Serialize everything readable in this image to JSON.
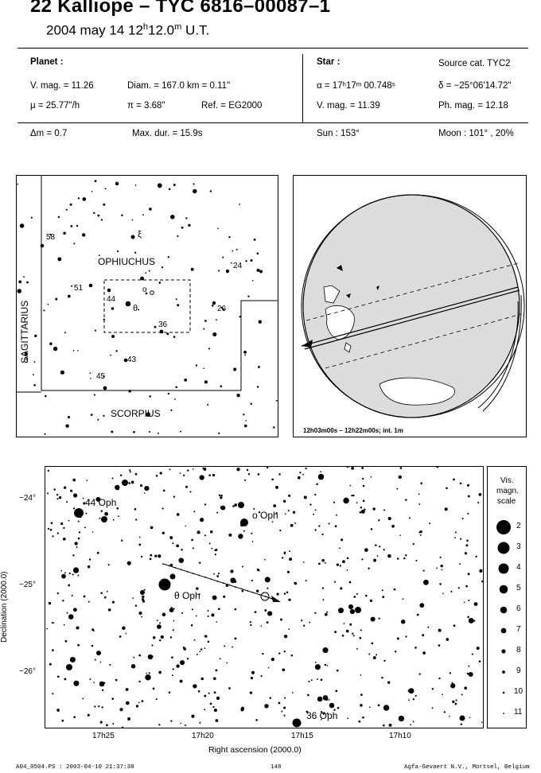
{
  "header": {
    "title": "22 Kalliope  –  TYC 6816–00087–1",
    "date": "2004 may 14  12",
    "time_h": "h",
    "time_min": "12.0",
    "time_m": "m",
    "time_ut": " U.T."
  },
  "planet": {
    "heading": "Planet :",
    "vmag": "V. mag. = 11.26",
    "diam": "Diam. = 167.0 km = 0.11\"",
    "mu": "μ =  25.77\"/h",
    "pi": "π =  3.68\"",
    "ref": "Ref. = EG2000"
  },
  "star": {
    "heading": "Star :",
    "source": "Source cat.  TYC2",
    "alpha": "α = 17ʰ17ᵐ 00.748ˢ",
    "delta": "δ = −25°06'14.72\"",
    "vmag": "V. mag. = 11.39",
    "phmag": "Ph. mag. = 12.18"
  },
  "summary": {
    "dm": "Δm = 0.7",
    "maxdur": "Max. dur. = 15.9s",
    "sun": "Sun : 153°",
    "moon": "Moon : 101° , 20%"
  },
  "constellation_map": {
    "ophiuchus": "OPHIUCHUS",
    "sagittarius": "SAGITTARIUS",
    "scorpius": "SCORPIUS",
    "stars": [
      "58",
      "ξ",
      "24",
      "51",
      "ο",
      "44",
      "θ",
      "26",
      "36",
      "43",
      "45",
      "3"
    ]
  },
  "globe": {
    "caption": "12h03m00s – 12h22m00s; int.  1m"
  },
  "star_chart": {
    "labels": [
      "44 Oph",
      "o Oph",
      "θ Oph",
      "36 Oph"
    ],
    "dec_ticks": [
      "−24°",
      "−25°",
      "−26°"
    ],
    "ra_ticks": [
      "17h25",
      "17h20",
      "17h15",
      "17h10"
    ],
    "xlabel": "Right ascension (2000.0)",
    "ylabel": "Declination (2000.0)"
  },
  "mag_scale": {
    "title1": "Vis.",
    "title2": "magn.",
    "title3": "scale",
    "values": [
      "2",
      "3",
      "4",
      "5",
      "6",
      "7",
      "8",
      "9",
      "10",
      "11"
    ]
  },
  "footer": {
    "file": "A04_0504.PS : 2003-04-10 21:37:38",
    "page": "148",
    "company": "Agfa-Gevaert N.V., Mortsel, Belgium"
  }
}
